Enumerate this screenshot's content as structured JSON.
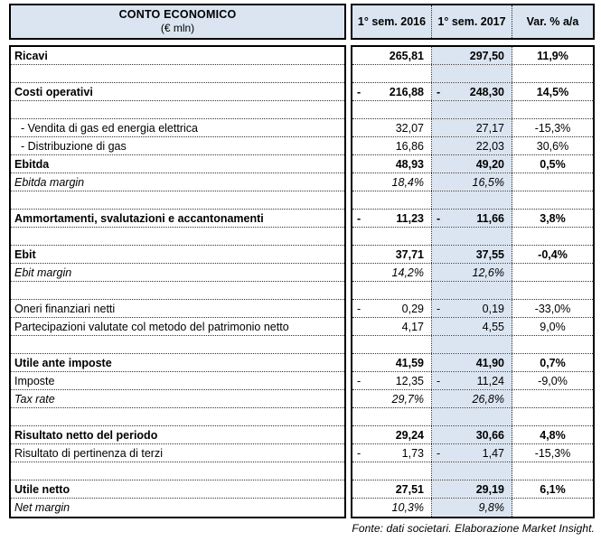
{
  "header": {
    "title": "CONTO ECONOMICO",
    "subtitle": "(€ mln)",
    "columns": [
      "1° sem. 2016",
      "1° sem. 2017",
      "Var. % a/a"
    ]
  },
  "table": {
    "rows": [
      {
        "label": "Ricavi",
        "style": "bold",
        "indent": false,
        "m16": "",
        "v16": "265,81",
        "m17": "",
        "v17": "297,50",
        "var": "11,9%"
      },
      {
        "label": "",
        "style": "empty",
        "indent": false,
        "m16": "",
        "v16": "",
        "m17": "",
        "v17": "",
        "var": ""
      },
      {
        "label": "Costi operativi",
        "style": "bold",
        "indent": false,
        "m16": "-",
        "v16": "216,88",
        "m17": "-",
        "v17": "248,30",
        "var": "14,5%"
      },
      {
        "label": "",
        "style": "empty",
        "indent": false,
        "m16": "",
        "v16": "",
        "m17": "",
        "v17": "",
        "var": ""
      },
      {
        "label": "- Vendita di gas ed energia elettrica",
        "style": "normal",
        "indent": true,
        "m16": "",
        "v16": "32,07",
        "m17": "",
        "v17": "27,17",
        "var": "-15,3%"
      },
      {
        "label": "- Distribuzione di gas",
        "style": "normal",
        "indent": true,
        "m16": "",
        "v16": "16,86",
        "m17": "",
        "v17": "22,03",
        "var": "30,6%"
      },
      {
        "label": "Ebitda",
        "style": "bold",
        "indent": false,
        "m16": "",
        "v16": "48,93",
        "m17": "",
        "v17": "49,20",
        "var": "0,5%"
      },
      {
        "label": "Ebitda margin",
        "style": "italic",
        "indent": false,
        "m16": "",
        "v16": "18,4%",
        "m17": "",
        "v17": "16,5%",
        "var": ""
      },
      {
        "label": "",
        "style": "empty",
        "indent": false,
        "m16": "",
        "v16": "",
        "m17": "",
        "v17": "",
        "var": ""
      },
      {
        "label": "Ammortamenti, svalutazioni e accantonamenti",
        "style": "bold",
        "indent": false,
        "m16": "-",
        "v16": "11,23",
        "m17": "-",
        "v17": "11,66",
        "var": "3,8%"
      },
      {
        "label": "",
        "style": "empty",
        "indent": false,
        "m16": "",
        "v16": "",
        "m17": "",
        "v17": "",
        "var": ""
      },
      {
        "label": "Ebit",
        "style": "bold",
        "indent": false,
        "m16": "",
        "v16": "37,71",
        "m17": "",
        "v17": "37,55",
        "var": "-0,4%"
      },
      {
        "label": "Ebit margin",
        "style": "italic",
        "indent": false,
        "m16": "",
        "v16": "14,2%",
        "m17": "",
        "v17": "12,6%",
        "var": ""
      },
      {
        "label": "",
        "style": "empty",
        "indent": false,
        "m16": "",
        "v16": "",
        "m17": "",
        "v17": "",
        "var": ""
      },
      {
        "label": "Oneri finanziari netti",
        "style": "normal",
        "indent": false,
        "m16": "-",
        "v16": "0,29",
        "m17": "-",
        "v17": "0,19",
        "var": "-33,0%"
      },
      {
        "label": "Partecipazioni valutate col metodo del patrimonio netto",
        "style": "normal",
        "indent": false,
        "m16": "",
        "v16": "4,17",
        "m17": "",
        "v17": "4,55",
        "var": "9,0%"
      },
      {
        "label": "",
        "style": "empty",
        "indent": false,
        "m16": "",
        "v16": "",
        "m17": "",
        "v17": "",
        "var": ""
      },
      {
        "label": "Utile ante imposte",
        "style": "bold",
        "indent": false,
        "m16": "",
        "v16": "41,59",
        "m17": "",
        "v17": "41,90",
        "var": "0,7%"
      },
      {
        "label": "Imposte",
        "style": "normal",
        "indent": false,
        "m16": "-",
        "v16": "12,35",
        "m17": "-",
        "v17": "11,24",
        "var": "-9,0%"
      },
      {
        "label": "Tax rate",
        "style": "italic",
        "indent": false,
        "m16": "",
        "v16": "29,7%",
        "m17": "",
        "v17": "26,8%",
        "var": ""
      },
      {
        "label": "",
        "style": "empty",
        "indent": false,
        "m16": "",
        "v16": "",
        "m17": "",
        "v17": "",
        "var": ""
      },
      {
        "label": "Risultato netto del periodo",
        "style": "bold",
        "indent": false,
        "m16": "",
        "v16": "29,24",
        "m17": "",
        "v17": "30,66",
        "var": "4,8%"
      },
      {
        "label": "Risultato di pertinenza di terzi",
        "style": "normal",
        "indent": false,
        "m16": "-",
        "v16": "1,73",
        "m17": "-",
        "v17": "1,47",
        "var": "-15,3%"
      },
      {
        "label": "",
        "style": "empty",
        "indent": false,
        "m16": "",
        "v16": "",
        "m17": "",
        "v17": "",
        "var": ""
      },
      {
        "label": "Utile netto",
        "style": "bold",
        "indent": false,
        "m16": "",
        "v16": "27,51",
        "m17": "",
        "v17": "29,19",
        "var": "6,1%"
      },
      {
        "label": "Net margin",
        "style": "italic",
        "indent": false,
        "m16": "",
        "v16": "10,3%",
        "m17": "",
        "v17": "9,8%",
        "var": ""
      }
    ]
  },
  "footer": {
    "source": "Fonte: dati societari. Elaborazione Market Insight."
  },
  "colors": {
    "header_bg": "#dbe5f1",
    "highlight_column_bg": "#dbe5f1",
    "border": "#000000"
  }
}
